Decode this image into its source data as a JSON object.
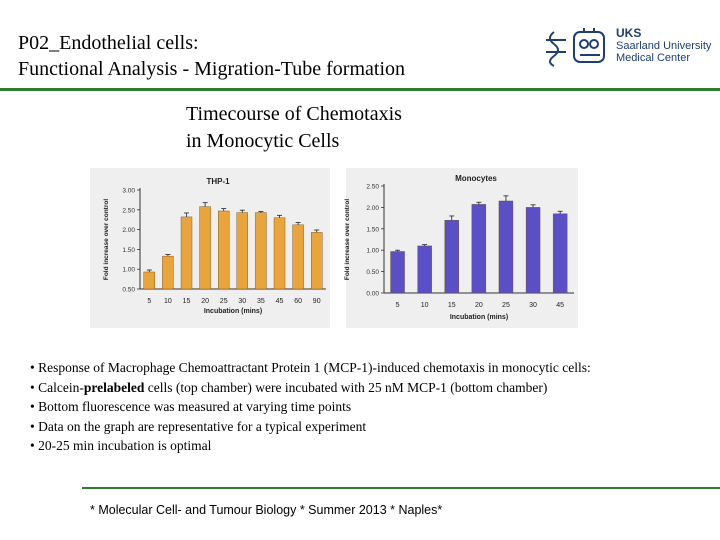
{
  "slide": {
    "title_line1": "P02_Endothelial cells:",
    "title_line2": "Functional Analysis - Migration-Tube formation",
    "heading_line1": "Timecourse of Chemotaxis",
    "heading_line2": "in Monocytic Cells",
    "logo": {
      "line1": "UKS",
      "line2": "Saarland University",
      "line3": "Medical Center"
    },
    "bullets": {
      "b1": "• Response of Macrophage Chemoattractant Protein 1 (MCP-1)-induced chemotaxis in monocytic cells:",
      "b2_pre": "• Calcein-",
      "b2_bold": "prelabeled",
      "b2_post": " cells (top chamber) were incubated with 25 nM MCP-1 (bottom chamber)",
      "b3": "• Bottom fluorescence was measured at varying time points",
      "b4": "• Data on the graph are representative for a typical experiment",
      "b5": "• 20-25 min incubation is optimal"
    },
    "footer": "* Molecular Cell- and Tumour Biology * Summer 2013 * Naples*",
    "colors": {
      "accent_green": "#2e7d2e",
      "thp1_bar": "#e9a43c",
      "monocyte_bar": "#5b4fc7"
    }
  },
  "chart_data": [
    {
      "type": "bar",
      "title": "THP-1",
      "xlabel": "Incubation (mins)",
      "ylabel": "Fold increase over control",
      "categories": [
        "5",
        "10",
        "15",
        "20",
        "25",
        "30",
        "35",
        "45",
        "60",
        "90"
      ],
      "values": [
        0.93,
        1.33,
        2.32,
        2.58,
        2.47,
        2.43,
        2.43,
        2.3,
        2.12,
        1.93
      ],
      "errors": [
        0.05,
        0.04,
        0.1,
        0.1,
        0.06,
        0.06,
        0.03,
        0.06,
        0.06,
        0.06
      ],
      "ylim": [
        0.5,
        3.0
      ],
      "yticks": [
        "0.50",
        "1.00",
        "1.50",
        "2.00",
        "2.50",
        "3.00"
      ],
      "color": "#e9a43c"
    },
    {
      "type": "bar",
      "title": "Monocytes",
      "xlabel": "Incubation (mins)",
      "ylabel": "Fold increase over control",
      "categories": [
        "5",
        "10",
        "15",
        "20",
        "25",
        "30",
        "45"
      ],
      "values": [
        0.97,
        1.1,
        1.7,
        2.07,
        2.15,
        2.0,
        1.85
      ],
      "errors": [
        0.03,
        0.03,
        0.1,
        0.05,
        0.12,
        0.06,
        0.06
      ],
      "ylim": [
        0.0,
        2.5
      ],
      "yticks": [
        "0.00",
        "0.50",
        "1.00",
        "1.50",
        "2.00",
        "2.50"
      ],
      "color": "#5b4fc7"
    }
  ]
}
